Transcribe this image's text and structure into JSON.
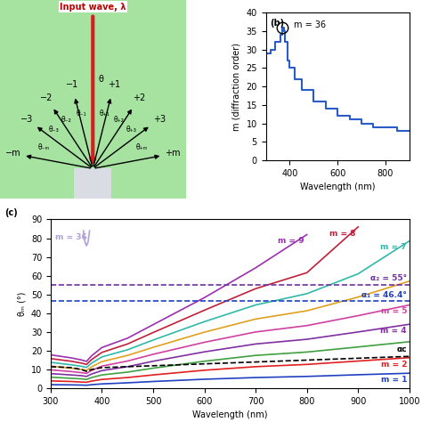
{
  "diagram": {
    "input_label": "Input wave, λ",
    "normal_label": "θ",
    "orders": [
      {
        "label": "−m",
        "angle_label": "θ₋ₘ"
      },
      {
        "label": "−3",
        "angle_label": "θ₋₃"
      },
      {
        "label": "−2",
        "angle_label": "θ₋₂"
      },
      {
        "label": "−1",
        "angle_label": "θ₋₁"
      },
      {
        "label": "+1",
        "angle_label": "θ₊₁"
      },
      {
        "label": "+2",
        "angle_label": "θ₊₂"
      },
      {
        "label": "+3",
        "angle_label": "θ₊₃"
      },
      {
        "label": "+m",
        "angle_label": "θ₊ₘ"
      }
    ]
  },
  "chart_data": [
    {
      "type": "step",
      "panel_label": "(b)",
      "color": "#2a5cc8",
      "x": [
        300,
        320,
        340,
        360,
        370,
        375,
        380,
        390,
        400,
        420,
        450,
        500,
        550,
        600,
        650,
        700,
        750,
        800,
        850,
        900
      ],
      "values": [
        29,
        30,
        32,
        34,
        36,
        35,
        32,
        27,
        25,
        22,
        19,
        16,
        14,
        12,
        11,
        10,
        9,
        9,
        8,
        8
      ],
      "xlabel": "Wavelength (nm)",
      "ylabel": "m (diffraction order)",
      "xlim": [
        300,
        900
      ],
      "xticks": [
        400,
        600,
        800
      ],
      "ylim": [
        0,
        40
      ],
      "yticks": [
        0,
        5,
        10,
        15,
        20,
        25,
        30,
        35,
        40
      ],
      "annotations": [
        {
          "text": "m = 36",
          "x": 370,
          "y": 36
        }
      ]
    },
    {
      "type": "line",
      "panel_label": "(c)",
      "xlabel": "Wavelength (nm)",
      "ylabel": "θₘ (°)",
      "xlim": [
        300,
        1000
      ],
      "xticks": [
        300,
        400,
        500,
        600,
        700,
        800,
        900,
        1000
      ],
      "ylim": [
        0,
        90
      ],
      "yticks": [
        0,
        10,
        20,
        30,
        40,
        50,
        60,
        70,
        80,
        90
      ],
      "x": [
        300,
        340,
        360,
        370,
        380,
        400,
        450,
        500,
        600,
        700,
        800,
        900,
        1000
      ],
      "series": [
        {
          "name": "m = 1",
          "color": "#2040c0",
          "values": [
            1.9,
            1.8,
            1.7,
            1.6,
            1.9,
            2.3,
            2.9,
            3.6,
            4.8,
            5.7,
            6.3,
            7.2,
            8.0
          ]
        },
        {
          "name": "m = 2",
          "color": "#e02020",
          "values": [
            3.9,
            3.6,
            3.3,
            3.2,
            3.8,
            4.7,
            5.7,
            7.1,
            9.6,
            11.5,
            12.7,
            14.5,
            16.3
          ]
        },
        {
          "color": "#40a040",
          "values": [
            5.9,
            5.3,
            5.0,
            4.7,
            5.7,
            7.1,
            8.6,
            10.7,
            14.4,
            17.5,
            19.3,
            22.0,
            24.8
          ]
        },
        {
          "name": "m = 4",
          "color": "#8030a0",
          "values": [
            7.8,
            7.1,
            6.7,
            6.3,
            7.6,
            9.4,
            11.5,
            14.4,
            19.4,
            23.6,
            26.1,
            30.0,
            34.1
          ]
        },
        {
          "name": "m = 5",
          "color": "#d040a0",
          "values": [
            9.8,
            8.9,
            8.3,
            7.9,
            9.5,
            11.8,
            14.5,
            18.1,
            24.5,
            30.0,
            33.4,
            38.7,
            44.4
          ]
        },
        {
          "color": "#e0a020",
          "values": [
            11.8,
            10.7,
            10.0,
            9.5,
            11.4,
            14.2,
            17.5,
            21.8,
            29.9,
            36.9,
            41.3,
            48.6,
            57.1
          ]
        },
        {
          "name": "m = 7",
          "color": "#30b8a8",
          "values": [
            13.8,
            12.5,
            11.7,
            11.1,
            13.4,
            16.7,
            20.5,
            25.7,
            35.5,
            44.4,
            50.4,
            61.0,
            78.5
          ]
        },
        {
          "name": "m = 8",
          "color": "#c0203a",
          "values": [
            15.8,
            14.4,
            13.4,
            12.7,
            15.3,
            19.1,
            23.6,
            29.7,
            41.6,
            53.1,
            61.6,
            86.0,
            null
          ]
        },
        {
          "name": "m = 9",
          "color": "#9b30b0",
          "values": [
            17.8,
            16.2,
            15.1,
            14.3,
            17.3,
            21.7,
            26.7,
            33.9,
            48.3,
            64.2,
            81.9,
            null,
            null
          ]
        },
        {
          "name": "m = 36",
          "color": "#b0a0d8",
          "x": [
            364,
            367,
            370,
            373,
            376
          ],
          "values": [
            84,
            78,
            76,
            78,
            84
          ]
        },
        {
          "name": "αc",
          "color": "#000000",
          "line_style": "dashed",
          "values": [
            11.5,
            11.0,
            10.0,
            9.0,
            10.0,
            11.0,
            11.5,
            12.0,
            13.0,
            14.0,
            15.0,
            16.0,
            17.0
          ]
        }
      ],
      "reference_lines": [
        {
          "name": "α₂ = 55°",
          "value": 55,
          "color": "#7030a0"
        },
        {
          "name": "α₁ = 46.4°",
          "value": 46.4,
          "color": "#2040c0"
        }
      ]
    }
  ]
}
